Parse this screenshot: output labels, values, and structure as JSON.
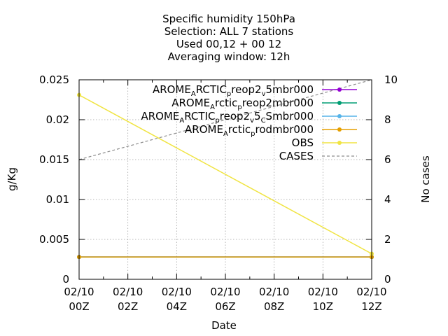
{
  "chart_data": {
    "type": "line",
    "title_lines": [
      "Specific humidity 150hPa",
      "Selection: ALL      7 stations",
      "Used  00,12  + 00 12",
      "Averaging window: 12h"
    ],
    "xlabel": "Date",
    "ylabel": "g/Kg",
    "y2label": "No cases",
    "x_ticks": [
      {
        "x": 0,
        "line1": "02/10",
        "line2": "00Z"
      },
      {
        "x": 2,
        "line1": "02/10",
        "line2": "02Z"
      },
      {
        "x": 4,
        "line1": "02/10",
        "line2": "04Z"
      },
      {
        "x": 6,
        "line1": "02/10",
        "line2": "06Z"
      },
      {
        "x": 8,
        "line1": "02/10",
        "line2": "08Z"
      },
      {
        "x": 10,
        "line1": "02/10",
        "line2": "10Z"
      },
      {
        "x": 12,
        "line1": "02/10",
        "line2": "12Z"
      }
    ],
    "xlim": [
      0,
      12
    ],
    "ylim": [
      0,
      0.025
    ],
    "y_ticks": [
      "0",
      "0.005",
      "0.01",
      "0.015",
      "0.02",
      "0.025"
    ],
    "y2lim": [
      0,
      10
    ],
    "y2_ticks": [
      "0",
      "2",
      "4",
      "6",
      "8",
      "10"
    ],
    "grid": true,
    "legend_position": "top-right",
    "series": [
      {
        "name_parts": [
          [
            "AROME",
            ""
          ],
          [
            "A",
            "sub"
          ],
          [
            "RCTIC",
            ""
          ],
          [
            "p",
            "sub"
          ],
          [
            "reop2",
            ""
          ],
          [
            "v",
            "sub"
          ],
          [
            "5mbr000",
            ""
          ]
        ],
        "color": "#9400d3",
        "axis": "y",
        "x": [
          0,
          12
        ],
        "y": [
          0.0028,
          0.0028
        ]
      },
      {
        "name_parts": [
          [
            "AROME",
            ""
          ],
          [
            "A",
            "sub"
          ],
          [
            "rctic",
            ""
          ],
          [
            "p",
            "sub"
          ],
          [
            "reop2mbr000",
            ""
          ]
        ],
        "color": "#009e73",
        "axis": "y",
        "x": [
          0,
          12
        ],
        "y": [
          0.0028,
          0.0028
        ]
      },
      {
        "name_parts": [
          [
            "AROME",
            ""
          ],
          [
            "A",
            "sub"
          ],
          [
            "RCTIC",
            ""
          ],
          [
            "p",
            "sub"
          ],
          [
            "reop2",
            ""
          ],
          [
            "v",
            "sub"
          ],
          [
            "5",
            ""
          ],
          [
            "C",
            "sub"
          ],
          [
            "Smbr000",
            ""
          ]
        ],
        "color": "#56b4e9",
        "axis": "y",
        "x": [
          0,
          12
        ],
        "y": [
          0.0028,
          0.0028
        ]
      },
      {
        "name_parts": [
          [
            "AROME",
            ""
          ],
          [
            "A",
            "sub"
          ],
          [
            "rctic",
            ""
          ],
          [
            "p",
            "sub"
          ],
          [
            "rodmbr000",
            ""
          ]
        ],
        "color": "#e69f00",
        "axis": "y",
        "x": [
          0,
          12
        ],
        "y": [
          0.0028,
          0.0028
        ]
      },
      {
        "name_parts": [
          [
            "OBS",
            ""
          ]
        ],
        "color": "#f0e442",
        "axis": "y",
        "x": [
          0,
          12
        ],
        "y": [
          0.0231,
          0.0032
        ]
      },
      {
        "name_parts": [
          [
            "CASES",
            ""
          ]
        ],
        "color": "#8c8c8c",
        "axis": "y2",
        "dashed": true,
        "x": [
          0,
          12
        ],
        "y": [
          6,
          10
        ]
      }
    ]
  }
}
